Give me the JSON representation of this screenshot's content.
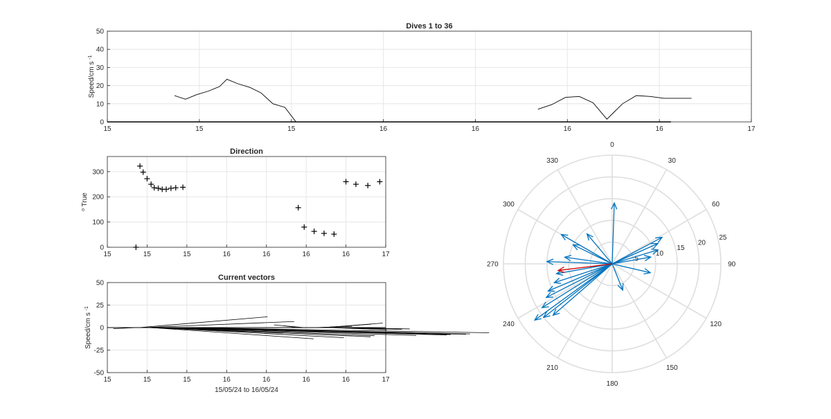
{
  "chart_data": [
    {
      "type": "line",
      "title": "Dives 1 to 36",
      "ylabel": "Speed/cm s",
      "ylabel_sup": "-1",
      "xlabel": "",
      "ylim": [
        0,
        50
      ],
      "yticks": [
        "0",
        "10",
        "20",
        "30",
        "40",
        "50"
      ],
      "xticks": [
        "15",
        "15",
        "15",
        "16",
        "16",
        "16",
        "16",
        "17"
      ],
      "grid": true,
      "color": "#000000",
      "segments": [
        {
          "x": [
            0.73,
            0.85,
            0.97,
            1.1,
            1.22,
            1.3,
            1.42,
            1.55,
            1.67,
            1.8,
            1.93,
            2.05,
            2.17
          ],
          "y": [
            14.5,
            12.5,
            15,
            17,
            19.5,
            23.5,
            21,
            19,
            16,
            10,
            8,
            0,
            0
          ]
        },
        {
          "x": [
            4.68,
            4.83,
            4.98,
            5.13,
            5.28,
            5.43,
            5.6,
            5.75,
            5.9,
            6.05,
            6.2,
            6.35
          ],
          "y": [
            7,
            9.5,
            13.5,
            14,
            10.5,
            1.5,
            10,
            14.5,
            14,
            13,
            13,
            13
          ]
        }
      ]
    },
    {
      "type": "scatter",
      "title": "Direction",
      "ylabel": "o True",
      "xlabel": "",
      "ylim": [
        0,
        360
      ],
      "yticks": [
        "0",
        "100",
        "200",
        "300"
      ],
      "xticks": [
        "15",
        "15",
        "15",
        "16",
        "16",
        "16",
        "16",
        "17"
      ],
      "grid": true,
      "marker": "+",
      "x": [
        0.72,
        0.82,
        0.9,
        1.0,
        1.1,
        1.18,
        1.28,
        1.38,
        1.48,
        1.6,
        1.72,
        1.9,
        4.8,
        4.95,
        5.2,
        5.45,
        5.7,
        6.0,
        6.25,
        6.55,
        6.85
      ],
      "y": [
        0,
        322,
        298,
        272,
        250,
        236,
        234,
        230,
        230,
        234,
        236,
        238,
        157,
        80,
        63,
        55,
        52,
        260,
        250,
        245,
        260
      ]
    },
    {
      "type": "line",
      "title": "Current vectors",
      "ylabel": "Speed/cm s",
      "ylabel_sup": "-1",
      "xlabel": "15/05/24 to 16/05/24",
      "ylim": [
        -50,
        50
      ],
      "yticks": [
        "-50",
        "-25",
        "0",
        "25",
        "50"
      ],
      "xticks": [
        "15",
        "15",
        "15",
        "16",
        "16",
        "16",
        "16",
        "17"
      ],
      "grid": true,
      "color": "#000000",
      "sticks": [
        {
          "x": [
            0.28,
            0.5,
            0.72,
            0.8,
            0.9,
            1.0,
            1.1,
            1.2,
            1.3,
            1.4,
            1.5,
            1.6,
            1.7,
            1.8,
            1.9,
            2.0,
            2.1
          ],
          "u": [
            0.0,
            -0.5,
            -0.6,
            3.4,
            4.0,
            3.6,
            4.3,
            5.0,
            5.6,
            5.6,
            6.6,
            7.3,
            7.3,
            7.6,
            7.6,
            8.0,
            0.0
          ],
          "v": [
            0.0,
            0.0,
            -0.5,
            4.8,
            2.7,
            -2.5,
            -5.0,
            -4.5,
            -4.1,
            -3.6,
            -3.5,
            -3.3,
            -3.1,
            -3.0,
            -2.8,
            -2.3,
            0.0
          ]
        },
        {
          "x": [
            4.8,
            4.95,
            5.1,
            5.2,
            5.3,
            5.4,
            5.5,
            5.6,
            5.7,
            5.8,
            6.0,
            6.25
          ],
          "u": [
            -0.4,
            -0.8,
            0.0,
            0.6,
            0.9,
            1.3,
            1.5,
            1.5,
            1.8,
            1.9,
            0.0,
            0.0
          ],
          "v": [
            0.8,
            1.2,
            0.0,
            0.3,
            0.6,
            1.5,
            2.0,
            -1.0,
            -0.8,
            -0.6,
            0.0,
            0.0
          ]
        }
      ]
    },
    {
      "type": "polar_compass",
      "rlim": [
        0,
        25
      ],
      "rticks": [
        "5",
        "10",
        "15",
        "20",
        "25"
      ],
      "angle_labels": [
        "0",
        "30",
        "60",
        "90",
        "120",
        "150",
        "180",
        "210",
        "240",
        "270",
        "300",
        "330"
      ],
      "series": [
        {
          "color": "#0072bd",
          "vectors": [
            {
              "dir": 2,
              "speed": 14
            },
            {
              "dir": 62,
              "speed": 13
            },
            {
              "dir": 66,
              "speed": 11.5
            },
            {
              "dir": 73,
              "speed": 11
            },
            {
              "dir": 80,
              "speed": 9
            },
            {
              "dir": 103,
              "speed": 9
            },
            {
              "dir": 158,
              "speed": 6.5
            },
            {
              "dir": 272,
              "speed": 15
            },
            {
              "dir": 300,
              "speed": 13.5
            },
            {
              "dir": 320,
              "speed": 9
            },
            {
              "dir": 296,
              "speed": 10
            },
            {
              "dir": 278,
              "speed": 11
            },
            {
              "dir": 260,
              "speed": 13
            },
            {
              "dir": 252,
              "speed": 14
            },
            {
              "dir": 247,
              "speed": 16
            },
            {
              "dir": 243,
              "speed": 17
            },
            {
              "dir": 238,
              "speed": 19
            },
            {
              "dir": 234,
              "speed": 22
            },
            {
              "dir": 232,
              "speed": 20
            },
            {
              "dir": 229,
              "speed": 18
            }
          ]
        },
        {
          "color": "#d00000",
          "vectors": [
            {
              "dir": 263,
              "speed": 12.5
            }
          ]
        }
      ]
    }
  ]
}
